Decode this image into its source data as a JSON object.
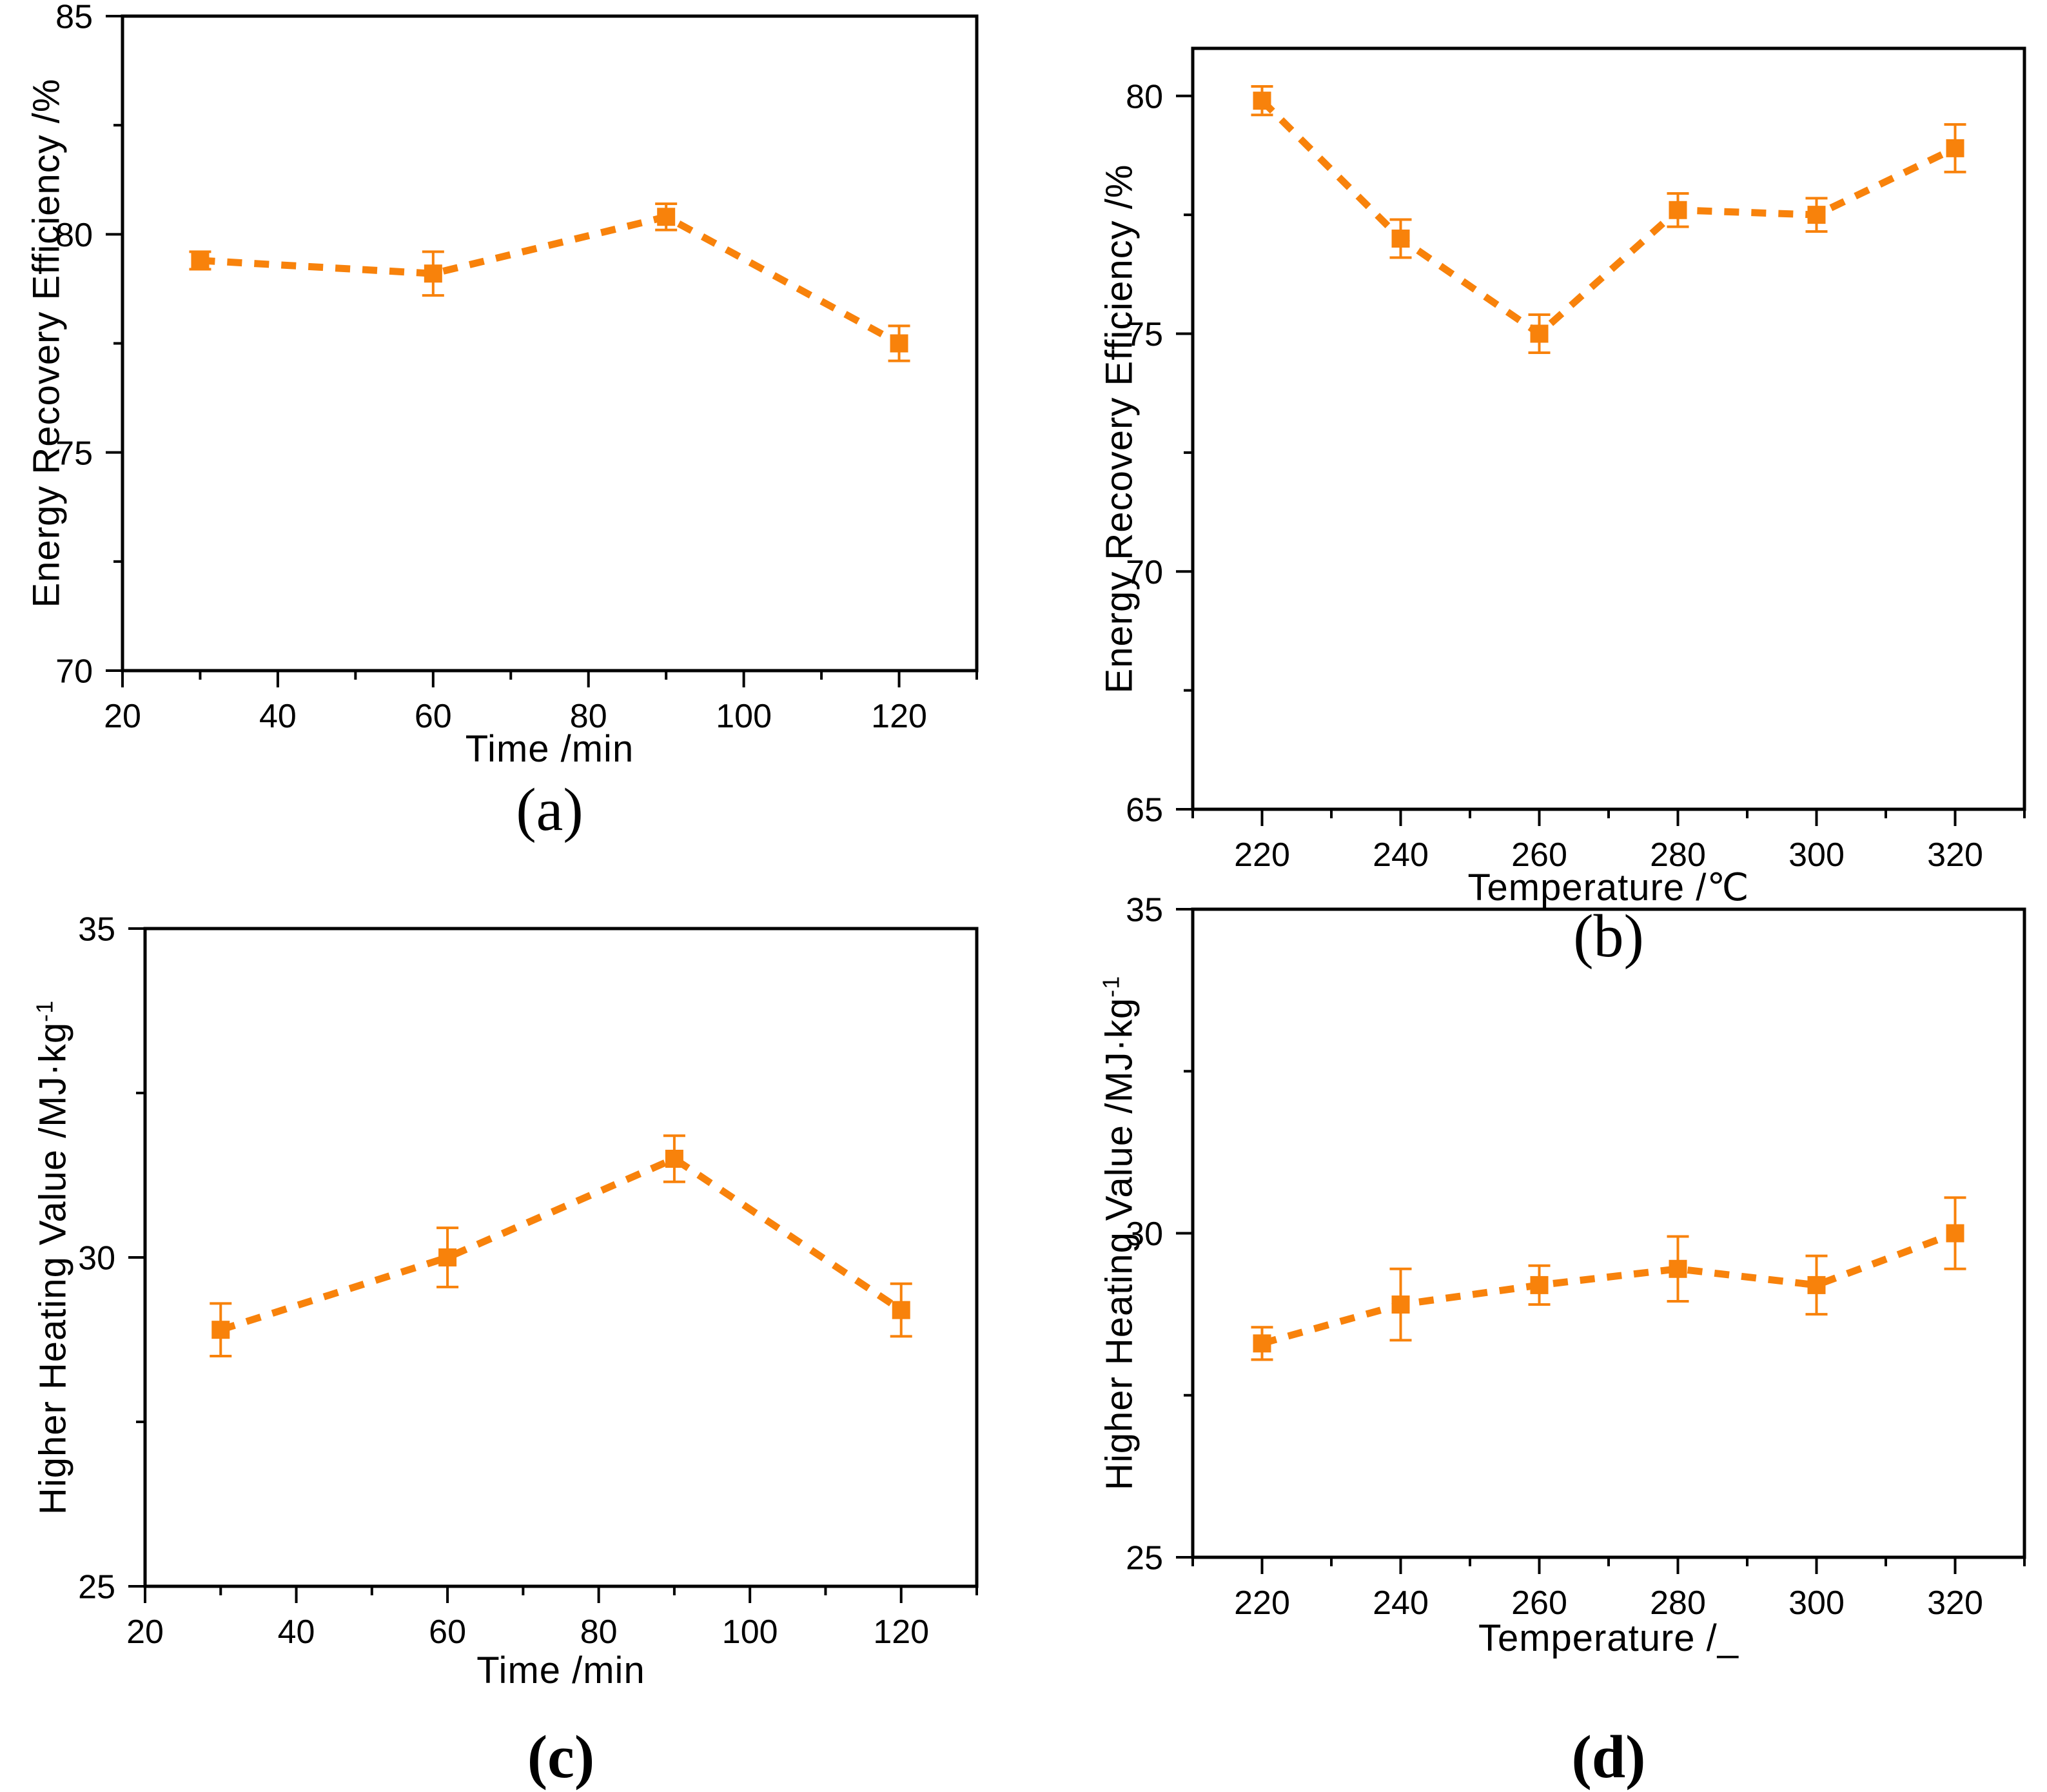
{
  "figure": {
    "background": "#ffffff",
    "accent_color": "#F8820B",
    "axis_color": "#000000"
  },
  "chart_data": [
    {
      "id": "a",
      "type": "line",
      "panel_label": "(a)",
      "panel_label_bold": false,
      "title": "",
      "xlabel": "Time /min",
      "ylabel": "Energy Recovery Efficiency /%",
      "ylabel_sup": "",
      "x": [
        30,
        60,
        90,
        120
      ],
      "y": [
        79.4,
        79.1,
        80.4,
        77.5
      ],
      "yerr": [
        0.2,
        0.5,
        0.3,
        0.4
      ],
      "xlim": [
        20,
        130
      ],
      "ylim": [
        70,
        85
      ],
      "xticks": [
        20,
        40,
        60,
        80,
        100,
        120
      ],
      "xminor": [
        30,
        50,
        70,
        90,
        110,
        130
      ],
      "yticks": [
        70,
        75,
        80,
        85
      ],
      "yminor": [
        72.5,
        77.5,
        82.5
      ],
      "line_color": "#F8820B",
      "line_style": "dashed",
      "marker": "square",
      "grid": false,
      "legend": "none"
    },
    {
      "id": "b",
      "type": "line",
      "panel_label": "(b)",
      "panel_label_bold": false,
      "title": "",
      "xlabel": "Temperature /℃",
      "ylabel": "Energy Recovery Efficiency /%",
      "ylabel_sup": "",
      "x": [
        220,
        240,
        260,
        280,
        300,
        320
      ],
      "y": [
        79.9,
        77.0,
        75.0,
        77.6,
        77.5,
        78.9
      ],
      "yerr": [
        0.3,
        0.4,
        0.4,
        0.35,
        0.35,
        0.5
      ],
      "xlim": [
        210,
        330
      ],
      "ylim": [
        65,
        81
      ],
      "xticks": [
        220,
        240,
        260,
        280,
        300,
        320
      ],
      "xminor": [
        210,
        230,
        250,
        270,
        290,
        310,
        330
      ],
      "yticks": [
        65,
        70,
        75,
        80
      ],
      "yminor": [
        67.5,
        72.5,
        77.5
      ],
      "line_color": "#F8820B",
      "line_style": "dashed",
      "marker": "square",
      "grid": false,
      "legend": "none"
    },
    {
      "id": "c",
      "type": "line",
      "panel_label": "(c)",
      "panel_label_bold": true,
      "title": "",
      "xlabel": "Time /min",
      "ylabel": "Higher Heating Value /MJ·kg",
      "ylabel_sup": "-1",
      "x": [
        30,
        60,
        90,
        120
      ],
      "y": [
        28.9,
        30.0,
        31.5,
        29.2
      ],
      "yerr": [
        0.4,
        0.45,
        0.35,
        0.4
      ],
      "xlim": [
        20,
        130
      ],
      "ylim": [
        25,
        35
      ],
      "xticks": [
        20,
        40,
        60,
        80,
        100,
        120
      ],
      "xminor": [
        30,
        50,
        70,
        90,
        110,
        130
      ],
      "yticks": [
        25,
        30,
        35
      ],
      "yminor": [
        27.5,
        32.5
      ],
      "line_color": "#F8820B",
      "line_style": "dashed",
      "marker": "square",
      "grid": false,
      "legend": "none"
    },
    {
      "id": "d",
      "type": "line",
      "panel_label": "(d)",
      "panel_label_bold": true,
      "title": "",
      "xlabel": "Temperature /_",
      "ylabel": "Higher Heating Value /MJ·kg",
      "ylabel_sup": "-1",
      "x": [
        220,
        240,
        260,
        280,
        300,
        320
      ],
      "y": [
        28.3,
        28.9,
        29.2,
        29.45,
        29.2,
        30.0
      ],
      "yerr": [
        0.25,
        0.55,
        0.3,
        0.5,
        0.45,
        0.55
      ],
      "xlim": [
        210,
        330
      ],
      "ylim": [
        25,
        35
      ],
      "xticks": [
        220,
        240,
        260,
        280,
        300,
        320
      ],
      "xminor": [
        210,
        230,
        250,
        270,
        290,
        310,
        330
      ],
      "yticks": [
        25,
        30,
        35
      ],
      "yminor": [
        27.5,
        32.5
      ],
      "line_color": "#F8820B",
      "line_style": "dashed",
      "marker": "square",
      "grid": false,
      "legend": "none"
    }
  ]
}
